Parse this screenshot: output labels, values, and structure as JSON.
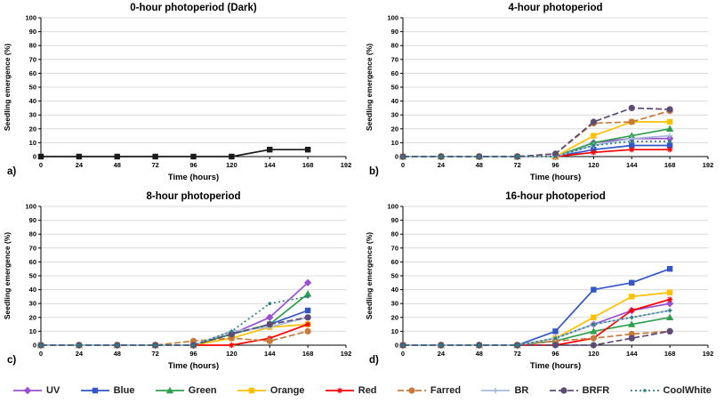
{
  "legend": {
    "items": [
      {
        "label": "UV",
        "color": "#9B4FD1",
        "marker": "diamond",
        "dash": "solid"
      },
      {
        "label": "Blue",
        "color": "#3356C8",
        "marker": "square",
        "dash": "solid"
      },
      {
        "label": "Green",
        "color": "#2EA04D",
        "marker": "triangle",
        "dash": "solid"
      },
      {
        "label": "Orange",
        "color": "#FFC000",
        "marker": "square",
        "dash": "solid"
      },
      {
        "label": "Red",
        "color": "#FF0000",
        "marker": "asterisk",
        "dash": "solid"
      },
      {
        "label": "Farred",
        "color": "#C9793B",
        "marker": "circle",
        "dash": "dashed"
      },
      {
        "label": "BR",
        "color": "#A7BCDB",
        "marker": "plus",
        "dash": "solid"
      },
      {
        "label": "BRFR",
        "color": "#5C4B77",
        "marker": "circle",
        "dash": "dashed"
      },
      {
        "label": "CoolWhite",
        "color": "#2A7F7F",
        "marker": "dot",
        "dash": "dotted"
      }
    ]
  },
  "chart_data": [
    {
      "type": "line",
      "panel_label": "a)",
      "title": "0-hour photoperiod (Dark)",
      "xlabel": "Time (hours)",
      "ylabel": "Seedling emergence (%)",
      "x": [
        0,
        24,
        48,
        72,
        96,
        120,
        144,
        168
      ],
      "xlim": [
        0,
        192
      ],
      "ylim": [
        0,
        100
      ],
      "xticks": [
        0,
        24,
        48,
        72,
        96,
        120,
        144,
        168,
        192
      ],
      "yticks": [
        0,
        10,
        20,
        30,
        40,
        50,
        60,
        70,
        80,
        90,
        100
      ],
      "grid": true,
      "series": [
        {
          "name": "Dark",
          "color": "#1A1A1A",
          "marker": "square",
          "dash": "solid",
          "values": [
            0,
            0,
            0,
            0,
            0,
            0,
            5,
            5
          ]
        }
      ]
    },
    {
      "type": "line",
      "panel_label": "b)",
      "title": "4-hour photoperiod",
      "xlabel": "Time (hours)",
      "ylabel": "Seedling emergence (%)",
      "x": [
        0,
        24,
        48,
        72,
        96,
        120,
        144,
        168
      ],
      "xlim": [
        0,
        192
      ],
      "ylim": [
        0,
        100
      ],
      "xticks": [
        0,
        24,
        48,
        72,
        96,
        120,
        144,
        168,
        192
      ],
      "yticks": [
        0,
        10,
        20,
        30,
        40,
        50,
        60,
        70,
        80,
        90,
        100
      ],
      "grid": true,
      "series": [
        {
          "name": "UV",
          "values": [
            0,
            0,
            0,
            0,
            0,
            10,
            13,
            13
          ]
        },
        {
          "name": "Blue",
          "values": [
            0,
            0,
            0,
            0,
            0,
            5,
            8,
            8
          ]
        },
        {
          "name": "Green",
          "values": [
            0,
            0,
            0,
            0,
            0,
            10,
            15,
            20
          ]
        },
        {
          "name": "Orange",
          "values": [
            0,
            0,
            0,
            0,
            0,
            15,
            25,
            25
          ]
        },
        {
          "name": "Red",
          "values": [
            0,
            0,
            0,
            0,
            0,
            3,
            5,
            5
          ]
        },
        {
          "name": "Farred",
          "values": [
            0,
            0,
            0,
            0,
            2,
            24,
            25,
            33
          ]
        },
        {
          "name": "BR",
          "values": [
            0,
            0,
            0,
            0,
            0,
            8,
            13,
            15
          ]
        },
        {
          "name": "BRFR",
          "values": [
            0,
            0,
            0,
            0,
            2,
            25,
            35,
            34
          ]
        },
        {
          "name": "CoolWhite",
          "values": [
            0,
            0,
            0,
            0,
            0,
            8,
            11,
            11
          ]
        }
      ]
    },
    {
      "type": "line",
      "panel_label": "c)",
      "title": "8-hour photoperiod",
      "xlabel": "Time (hours)",
      "ylabel": "Seedling emergence (%)",
      "x": [
        0,
        24,
        48,
        72,
        96,
        120,
        144,
        168
      ],
      "xlim": [
        0,
        192
      ],
      "ylim": [
        0,
        100
      ],
      "xticks": [
        0,
        24,
        48,
        72,
        96,
        120,
        144,
        168,
        192
      ],
      "yticks": [
        0,
        10,
        20,
        30,
        40,
        50,
        60,
        70,
        80,
        90,
        100
      ],
      "grid": true,
      "series": [
        {
          "name": "UV",
          "values": [
            0,
            0,
            0,
            0,
            0,
            8,
            20,
            45
          ]
        },
        {
          "name": "Blue",
          "values": [
            0,
            0,
            0,
            0,
            0,
            8,
            15,
            25
          ]
        },
        {
          "name": "Green",
          "values": [
            0,
            0,
            0,
            0,
            0,
            8,
            15,
            37
          ]
        },
        {
          "name": "Orange",
          "values": [
            0,
            0,
            0,
            0,
            0,
            5,
            13,
            15
          ]
        },
        {
          "name": "Red",
          "values": [
            0,
            0,
            0,
            0,
            0,
            0,
            5,
            15
          ]
        },
        {
          "name": "Farred",
          "values": [
            0,
            0,
            0,
            0,
            3,
            5,
            3,
            10
          ]
        },
        {
          "name": "BR",
          "values": [
            0,
            0,
            0,
            0,
            0,
            10,
            13,
            20
          ]
        },
        {
          "name": "BRFR",
          "values": [
            0,
            0,
            0,
            0,
            0,
            8,
            15,
            20
          ]
        },
        {
          "name": "CoolWhite",
          "values": [
            0,
            0,
            0,
            0,
            0,
            10,
            30,
            35
          ]
        }
      ]
    },
    {
      "type": "line",
      "panel_label": "d)",
      "title": "16-hour photoperiod",
      "xlabel": "Time (hours)",
      "ylabel": "Seedling emergence (%)",
      "x": [
        0,
        24,
        48,
        72,
        96,
        120,
        144,
        168
      ],
      "xlim": [
        0,
        192
      ],
      "ylim": [
        0,
        100
      ],
      "xticks": [
        0,
        24,
        48,
        72,
        96,
        120,
        144,
        168,
        192
      ],
      "yticks": [
        0,
        10,
        20,
        30,
        40,
        50,
        60,
        70,
        80,
        90,
        100
      ],
      "grid": true,
      "series": [
        {
          "name": "UV",
          "values": [
            0,
            0,
            0,
            0,
            5,
            15,
            25,
            30
          ]
        },
        {
          "name": "Blue",
          "values": [
            0,
            0,
            0,
            0,
            10,
            40,
            45,
            55
          ]
        },
        {
          "name": "Green",
          "values": [
            0,
            0,
            0,
            0,
            3,
            10,
            15,
            20
          ]
        },
        {
          "name": "Orange",
          "values": [
            0,
            0,
            0,
            0,
            5,
            20,
            35,
            38
          ]
        },
        {
          "name": "Red",
          "values": [
            0,
            0,
            0,
            0,
            0,
            5,
            25,
            33
          ]
        },
        {
          "name": "Farred",
          "values": [
            0,
            0,
            0,
            0,
            3,
            5,
            8,
            10
          ]
        },
        {
          "name": "BR",
          "values": [
            0,
            0,
            0,
            0,
            5,
            15,
            20,
            25
          ]
        },
        {
          "name": "BRFR",
          "values": [
            0,
            0,
            0,
            0,
            0,
            0,
            5,
            10
          ]
        },
        {
          "name": "CoolWhite",
          "values": [
            0,
            0,
            0,
            0,
            5,
            15,
            20,
            25
          ]
        }
      ]
    }
  ]
}
